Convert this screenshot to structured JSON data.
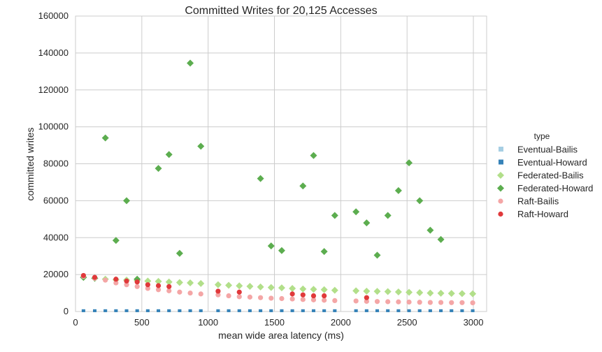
{
  "chart_data": {
    "type": "scatter",
    "title": "Committed Writes for 20,125 Accesses",
    "xlabel": "mean wide area latency (ms)",
    "ylabel": "committed writes",
    "xlim": [
      0,
      3100
    ],
    "ylim": [
      0,
      160000
    ],
    "x_ticks": [
      "0",
      "500",
      "1000",
      "1500",
      "2000",
      "2500",
      "3000"
    ],
    "y_ticks": [
      "0",
      "20000",
      "40000",
      "60000",
      "80000",
      "100000",
      "120000",
      "140000",
      "160000"
    ],
    "grid": true,
    "legend": {
      "title": "type",
      "placement": "right",
      "entries": [
        "Eventual-Bailis",
        "Eventual-Howard",
        "Federated-Bailis",
        "Federated-Howard",
        "Raft-Bailis",
        "Raft-Howard"
      ]
    },
    "series": [
      {
        "name": "Eventual-Bailis",
        "color": "#a6cee3",
        "marker": "square",
        "x": [
          60,
          145,
          225,
          305,
          385,
          465,
          545,
          625,
          705,
          785,
          865,
          945,
          1075,
          1155,
          1235,
          1315,
          1395,
          1475,
          1555,
          1635,
          1715,
          1795,
          1875,
          1955,
          2115,
          2195,
          2275,
          2355,
          2435,
          2515,
          2595,
          2675,
          2755,
          2835,
          2915,
          2995
        ],
        "y": [
          500,
          500,
          500,
          500,
          500,
          500,
          500,
          500,
          500,
          500,
          500,
          500,
          500,
          500,
          500,
          500,
          500,
          500,
          500,
          500,
          500,
          500,
          500,
          500,
          500,
          500,
          500,
          500,
          500,
          500,
          500,
          500,
          500,
          500,
          500,
          500
        ]
      },
      {
        "name": "Eventual-Howard",
        "color": "#3582b8",
        "marker": "square",
        "x": [
          60,
          145,
          225,
          305,
          385,
          465,
          545,
          625,
          705,
          785,
          865,
          945,
          1075,
          1155,
          1235,
          1315,
          1395,
          1475,
          1555,
          1635,
          1715,
          1795,
          1875,
          1955,
          2115,
          2195,
          2275,
          2355,
          2435,
          2515,
          2595,
          2675,
          2755,
          2835,
          2915,
          2995
        ],
        "y": [
          400,
          400,
          400,
          400,
          400,
          400,
          400,
          400,
          400,
          400,
          400,
          400,
          400,
          400,
          400,
          400,
          400,
          400,
          400,
          400,
          400,
          400,
          400,
          400,
          400,
          400,
          400,
          400,
          400,
          400,
          400,
          400,
          400,
          400,
          400,
          400
        ]
      },
      {
        "name": "Federated-Bailis",
        "color": "#b2df8a",
        "marker": "diamond",
        "x": [
          60,
          145,
          225,
          305,
          385,
          465,
          545,
          625,
          705,
          785,
          865,
          945,
          1075,
          1155,
          1235,
          1315,
          1395,
          1475,
          1555,
          1635,
          1715,
          1795,
          1875,
          1955,
          2115,
          2195,
          2275,
          2355,
          2435,
          2515,
          2595,
          2675,
          2755,
          2835,
          2915,
          2995
        ],
        "y": [
          18500,
          18000,
          17500,
          17200,
          17000,
          16800,
          16500,
          16300,
          16000,
          15700,
          15500,
          15200,
          14500,
          14200,
          13900,
          13600,
          13300,
          13000,
          12800,
          12500,
          12200,
          12000,
          11800,
          11500,
          11200,
          11000,
          10900,
          10800,
          10600,
          10400,
          10200,
          10000,
          9900,
          9800,
          9700,
          9600
        ]
      },
      {
        "name": "Federated-Howard",
        "color": "#5cad4f",
        "marker": "diamond",
        "x": [
          60,
          145,
          225,
          305,
          385,
          465,
          625,
          705,
          785,
          865,
          945,
          1395,
          1475,
          1555,
          1715,
          1795,
          1875,
          1955,
          2115,
          2195,
          2275,
          2355,
          2435,
          2515,
          2595,
          2675,
          2755
        ],
        "y": [
          18500,
          18000,
          94000,
          38500,
          60000,
          17500,
          77500,
          85000,
          31500,
          134500,
          89500,
          72000,
          35500,
          33000,
          68000,
          84500,
          32500,
          52000,
          54000,
          48000,
          30500,
          52000,
          65500,
          80500,
          60000,
          44000,
          39000
        ]
      },
      {
        "name": "Raft-Bailis",
        "color": "#f4a6a6",
        "marker": "circle",
        "x": [
          60,
          145,
          225,
          305,
          385,
          465,
          545,
          625,
          705,
          785,
          865,
          945,
          1075,
          1155,
          1235,
          1315,
          1395,
          1475,
          1555,
          1635,
          1715,
          1795,
          1875,
          1955,
          2115,
          2195,
          2275,
          2355,
          2435,
          2515,
          2595,
          2675,
          2755,
          2835,
          2915,
          2995
        ],
        "y": [
          19000,
          18000,
          17000,
          15500,
          14500,
          13500,
          12500,
          11800,
          11200,
          10500,
          10000,
          9500,
          9000,
          8500,
          8000,
          7800,
          7500,
          7200,
          7000,
          6800,
          6500,
          6300,
          6100,
          5900,
          5700,
          5500,
          5400,
          5300,
          5200,
          5100,
          5000,
          4900,
          4900,
          4800,
          4800,
          4700
        ]
      },
      {
        "name": "Raft-Howard",
        "color": "#e0393b",
        "marker": "circle",
        "x": [
          60,
          145,
          305,
          385,
          465,
          545,
          625,
          705,
          1075,
          1235,
          1635,
          1715,
          1795,
          1875,
          2195
        ],
        "y": [
          19500,
          18500,
          17500,
          16500,
          16000,
          14500,
          14000,
          13500,
          11000,
          10500,
          9500,
          9000,
          8500,
          8500,
          7500
        ]
      }
    ]
  }
}
